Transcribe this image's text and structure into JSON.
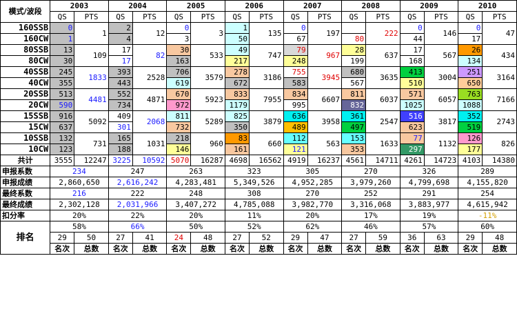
{
  "header": {
    "corner": "模式/波段",
    "years": [
      "2003",
      "2004",
      "2005",
      "2006",
      "2007",
      "2008",
      "2009",
      "2010"
    ],
    "qs": "QS",
    "pts": "PTS"
  },
  "bands": [
    {
      "a": "160SSB",
      "b": "160CW",
      "qs_a": [
        "0",
        "2",
        "0",
        "1",
        "0",
        "",
        "0",
        "0"
      ],
      "qs_b": [
        "1",
        "4",
        "3",
        "50",
        "67",
        "80",
        "44",
        "17"
      ],
      "pts": [
        "1",
        "12",
        "3",
        "135",
        "197",
        "222",
        "146",
        "47"
      ]
    },
    {
      "a": "80SSB",
      "b": "80CW",
      "qs_a": [
        "13",
        "17",
        "30",
        "49",
        "79",
        "28",
        "17",
        "26"
      ],
      "qs_b": [
        "30",
        "17",
        "163",
        "217",
        "248",
        "199",
        "168",
        "134"
      ],
      "pts": [
        "109",
        "82",
        "533",
        "747",
        "967",
        "637",
        "567",
        "434"
      ]
    },
    {
      "a": "40SSB",
      "b": "40CW",
      "qs_a": [
        "245",
        "393",
        "706",
        "278",
        "755",
        "680",
        "413",
        "251"
      ],
      "qs_b": [
        "355",
        "443",
        "619",
        "672",
        "583",
        "567",
        "510",
        "650"
      ],
      "pts": [
        "1833",
        "2528",
        "3579",
        "3186",
        "3945",
        "3635",
        "3004",
        "3164"
      ]
    },
    {
      "a": "20SSB",
      "b": "20CW",
      "qs_a": [
        "513",
        "552",
        "670",
        "833",
        "834",
        "811",
        "571",
        "763"
      ],
      "qs_b": [
        "590",
        "734",
        "972",
        "1179",
        "995",
        "832",
        "1025",
        "1088"
      ],
      "pts": [
        "4481",
        "4871",
        "5923",
        "7955",
        "6607",
        "6037",
        "6057",
        "7166"
      ]
    },
    {
      "a": "15SSB",
      "b": "15CW",
      "qs_a": [
        "916",
        "409",
        "811",
        "825",
        "636",
        "361",
        "516",
        "352"
      ],
      "qs_b": [
        "637",
        "301",
        "732",
        "350",
        "489",
        "497",
        "623",
        "519"
      ],
      "pts": [
        "5092",
        "2068",
        "5289",
        "3879",
        "3958",
        "2547",
        "3817",
        "2743"
      ]
    },
    {
      "a": "10SSB",
      "b": "10CW",
      "qs_a": [
        "132",
        "165",
        "218",
        "83",
        "112",
        "153",
        "77",
        "126"
      ],
      "qs_b": [
        "123",
        "188",
        "146",
        "161",
        "121",
        "353",
        "297",
        "177"
      ],
      "pts": [
        "731",
        "1031",
        "960",
        "660",
        "563",
        "1633",
        "1132",
        "826"
      ]
    }
  ],
  "totals": {
    "label": "共计",
    "qs": [
      "3555",
      "3225",
      "5070",
      "4698",
      "4919",
      "4561",
      "4261",
      "4103"
    ],
    "pts": [
      "12247",
      "10592",
      "16287",
      "16562",
      "16237",
      "14711",
      "14723",
      "14380"
    ]
  },
  "rows": [
    {
      "label": "申报系数",
      "values": [
        "234",
        "247",
        "263",
        "323",
        "305",
        "270",
        "326",
        "289"
      ]
    },
    {
      "label": "申报成绩",
      "values": [
        "2,860,650",
        "2,616,242",
        "4,283,481",
        "5,349,526",
        "4,952,285",
        "3,979,260",
        "4,799,698",
        "4,155,820"
      ]
    },
    {
      "label": "最终系数",
      "values": [
        "216",
        "222",
        "248",
        "308",
        "270",
        "252",
        "291",
        "254"
      ]
    },
    {
      "label": "最终成绩",
      "values": [
        "2,302,128",
        "2,031,966",
        "3,407,272",
        "4,785,088",
        "3,982,770",
        "3,316,068",
        "3,883,977",
        "4,615,942"
      ]
    },
    {
      "label": "扣分率",
      "values": [
        "20%",
        "22%",
        "20%",
        "11%",
        "20%",
        "17%",
        "19%",
        "-11%"
      ]
    }
  ],
  "ranking": {
    "label": "排名",
    "pct": [
      "58%",
      "66%",
      "50%",
      "52%",
      "62%",
      "46%",
      "57%",
      "60%"
    ],
    "place": [
      "29",
      "27",
      "24",
      "27",
      "29",
      "27",
      "36",
      "29"
    ],
    "total": [
      "50",
      "41",
      "48",
      "52",
      "47",
      "59",
      "63",
      "48"
    ],
    "place_label": "名次",
    "total_label": "总数"
  },
  "colors": {
    "blue": "#1a1aff",
    "red": "#e00000",
    "gold": "#d4a000"
  }
}
